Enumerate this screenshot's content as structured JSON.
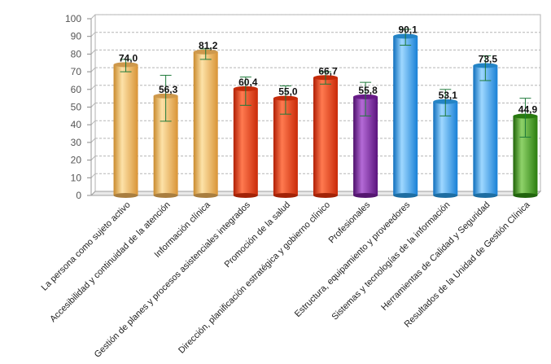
{
  "chart_data": {
    "type": "bar",
    "title": "",
    "xlabel": "",
    "ylabel": "",
    "ylim": [
      0,
      100
    ],
    "yticks": [
      0,
      10,
      20,
      30,
      40,
      50,
      60,
      70,
      80,
      90,
      100
    ],
    "grid": true,
    "legend": "none",
    "categories": [
      "La persona como sujeto activo",
      "Accesibilidad y continuidad de la atención",
      "Información clínica",
      "Gestión de planes y procesos asistenciales integrados",
      "Promoción de la salud",
      "Dirección, planificación estratégica y gobierno clínico",
      "Profesionales",
      "Estructura, equipamiento y proveedores",
      "Sistemas y tecnologías de la información",
      "Herramientas de Calidad y Seguridad",
      "Resultados de la Unidad de Gestión Clínica"
    ],
    "values": [
      74.0,
      56.3,
      81.2,
      60.4,
      55.0,
      66.7,
      55.8,
      90.1,
      53.1,
      73.5,
      44.9
    ],
    "value_labels": [
      "74,0",
      "56,3",
      "81,2",
      "60,4",
      "55,0",
      "66,7",
      "55,8",
      "90,1",
      "53,1",
      "73,5",
      "44,9"
    ],
    "error_low": [
      70,
      42,
      77,
      51,
      46,
      63,
      45,
      85,
      45,
      65,
      33
    ],
    "error_high": [
      77,
      68,
      83,
      67,
      62,
      70,
      64,
      94,
      60,
      79,
      55
    ],
    "bar_colors": [
      "#f2b45a",
      "#f2b45a",
      "#f2b45a",
      "#e8320a",
      "#e8320a",
      "#e8320a",
      "#7a1fa0",
      "#2a9be8",
      "#2a9be8",
      "#2a9be8",
      "#2f8f12"
    ],
    "error_bar_color": "#1e7a3a"
  }
}
